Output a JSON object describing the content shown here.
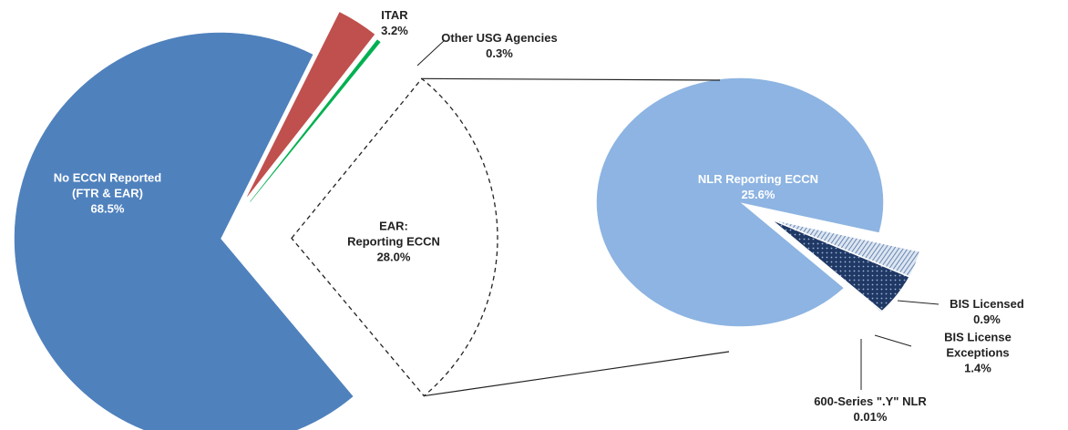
{
  "chart_data": {
    "type": "pie_of_pie",
    "pies": [
      {
        "categories": [
          "No ECCN Reported\n(FTR & EAR)",
          "ITAR",
          "Other USG Agencies",
          "EAR:\nReporting ECCN"
        ],
        "values": [
          68.5,
          3.2,
          0.3,
          28.0
        ],
        "value_labels": [
          "68.5%",
          "3.2%",
          "0.3%",
          "28.0%"
        ],
        "colors": [
          "#4f81bd",
          "#c0504d",
          "#00b050",
          "#ffffff"
        ]
      },
      {
        "categories": [
          "NLR Reporting ECCN",
          "BIS Licensed",
          "BIS License Exceptions",
          "600-Series \".Y\" NLR"
        ],
        "values": [
          25.6,
          0.9,
          1.4,
          0.01
        ],
        "value_labels": [
          "25.6%",
          "0.9%",
          "1.4%",
          "0.01%"
        ],
        "colors": [
          "#8db4e2",
          "#8db4e2",
          "#1f3864",
          "#1f3864"
        ]
      }
    ]
  }
}
